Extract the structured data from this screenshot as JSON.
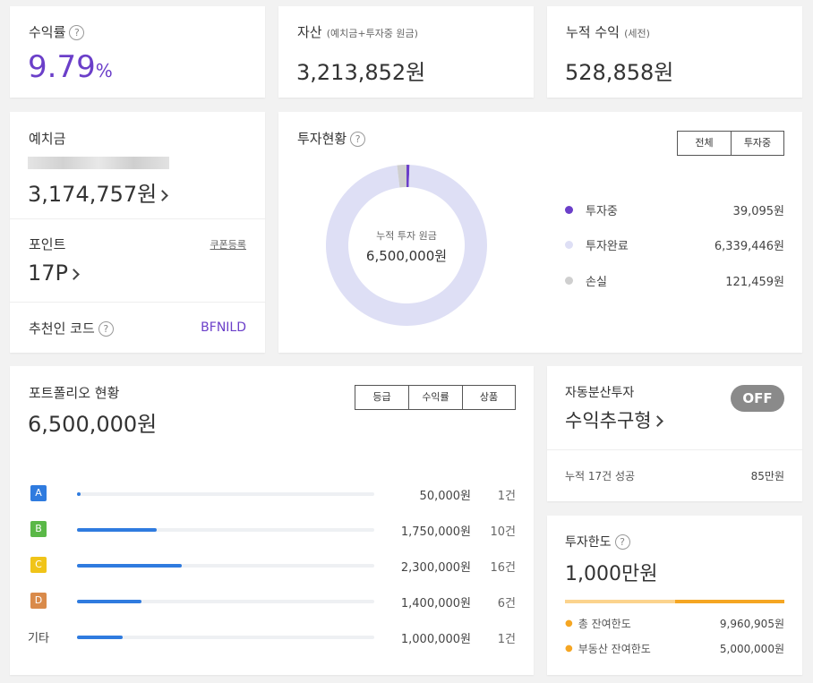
{
  "return_rate": {
    "label": "수익률",
    "help": "?",
    "value": "9.79",
    "unit": "%"
  },
  "assets": {
    "label": "자산",
    "note": "(예치금+투자중 원금)",
    "value": "3,213,852원"
  },
  "cum_profit": {
    "label": "누적 수익",
    "note": "(세전)",
    "value": "528,858원"
  },
  "deposit": {
    "label": "예치금",
    "value": "3,174,757원"
  },
  "points": {
    "label": "포인트",
    "coupon": "쿠폰등록",
    "value": "17P"
  },
  "referral": {
    "label": "추천인 코드",
    "help": "?",
    "code": "BFNILD"
  },
  "investment_status": {
    "label": "투자현황",
    "help": "?",
    "tabs": [
      "전체",
      "투자중"
    ],
    "center_label": "누적 투자 원금",
    "center_value": "6,500,000원",
    "legend": [
      {
        "name": "투자중",
        "value": "39,095원",
        "color": "#6b3fc9"
      },
      {
        "name": "투자완료",
        "value": "6,339,446원",
        "color": "#dedff5"
      },
      {
        "name": "손실",
        "value": "121,459원",
        "color": "#cfcfcf"
      }
    ]
  },
  "chart_data": {
    "type": "pie",
    "categories": [
      "투자중",
      "투자완료",
      "손실"
    ],
    "values": [
      39095,
      6339446,
      121459
    ],
    "title": "투자현황"
  },
  "portfolio": {
    "label": "포트폴리오 현황",
    "total": "6,500,000원",
    "tabs": [
      "등급",
      "수익률",
      "상품"
    ],
    "rows": [
      {
        "grade": "A",
        "color": "#2f7bdf",
        "amount": "50,000원",
        "count": "1건",
        "ratio": 0.0077
      },
      {
        "grade": "B",
        "color": "#5ab847",
        "amount": "1,750,000원",
        "count": "10건",
        "ratio": 0.2692
      },
      {
        "grade": "C",
        "color": "#f0c419",
        "amount": "2,300,000원",
        "count": "16건",
        "ratio": 0.3538
      },
      {
        "grade": "D",
        "color": "#d98a4a",
        "amount": "1,400,000원",
        "count": "6건",
        "ratio": 0.2154
      },
      {
        "grade": "기타",
        "color": "",
        "amount": "1,000,000원",
        "count": "1건",
        "ratio": 0.1538
      }
    ]
  },
  "auto_invest": {
    "label": "자동분산투자",
    "mode": "수익추구형",
    "toggle": "OFF",
    "history": "누적 17건 성공",
    "history_value": "85만원"
  },
  "limit": {
    "label": "투자한도",
    "help": "?",
    "value": "1,000만원",
    "used_fraction": 0.5,
    "items": [
      {
        "name": "총 잔여한도",
        "value": "9,960,905원"
      },
      {
        "name": "부동산 잔여한도",
        "value": "5,000,000원"
      }
    ]
  }
}
